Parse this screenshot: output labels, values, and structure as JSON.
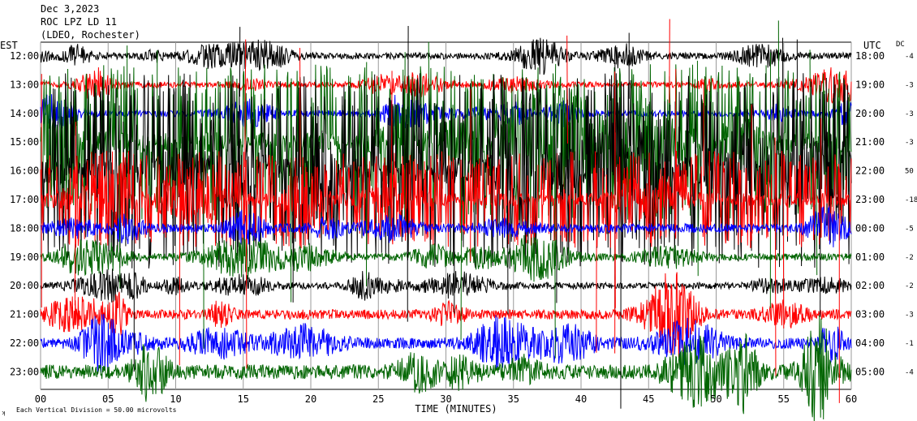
{
  "header": {
    "date": "Dec 3,2023",
    "station": "ROC LPZ LD 11",
    "location": "(LDEO, Rochester)"
  },
  "left_axis_title": "EST",
  "right_axis_title": "UTC",
  "dc_title": "DC",
  "footer": {
    "scale_note": "Each Vertical Division =   50.00 microvolts",
    "corner_mark": "ʞ"
  },
  "chart_data": {
    "type": "line",
    "title": "",
    "xlabel": "TIME (MINUTES)",
    "xlim": [
      0,
      60
    ],
    "x_ticks": [
      "00",
      "05",
      "10",
      "15",
      "20",
      "25",
      "30",
      "35",
      "40",
      "45",
      "50",
      "55",
      "60"
    ],
    "grid": "vertical lines every 5 minutes",
    "series": [
      {
        "est": "12:00",
        "utc": "18:00",
        "dc": "-4",
        "color": "#000000",
        "amplitude": 0.5,
        "saturated": false
      },
      {
        "est": "13:00",
        "utc": "19:00",
        "dc": "-3",
        "color": "#ff0000",
        "amplitude": 0.45,
        "saturated": false
      },
      {
        "est": "14:00",
        "utc": "20:00",
        "dc": "-3",
        "color": "#0000ff",
        "amplitude": 0.5,
        "saturated": false
      },
      {
        "est": "15:00",
        "utc": "21:00",
        "dc": "-3",
        "color": "#006400",
        "amplitude": 1.6,
        "saturated": true
      },
      {
        "est": "16:00",
        "utc": "22:00",
        "dc": "50",
        "color": "#000000",
        "amplitude": 2.0,
        "saturated": true
      },
      {
        "est": "17:00",
        "utc": "23:00",
        "dc": "-18",
        "color": "#ff0000",
        "amplitude": 1.0,
        "saturated": true
      },
      {
        "est": "18:00",
        "utc": "00:00",
        "dc": "-5",
        "color": "#0000ff",
        "amplitude": 0.7,
        "saturated": false
      },
      {
        "est": "19:00",
        "utc": "01:00",
        "dc": "-2",
        "color": "#006400",
        "amplitude": 0.55,
        "saturated": false
      },
      {
        "est": "20:00",
        "utc": "02:00",
        "dc": "-2",
        "color": "#000000",
        "amplitude": 0.5,
        "saturated": false
      },
      {
        "est": "21:00",
        "utc": "03:00",
        "dc": "-3",
        "color": "#ff0000",
        "amplitude": 0.75,
        "saturated": false
      },
      {
        "est": "22:00",
        "utc": "04:00",
        "dc": "-1",
        "color": "#0000ff",
        "amplitude": 0.85,
        "saturated": false
      },
      {
        "est": "23:00",
        "utc": "05:00",
        "dc": "-4",
        "color": "#006400",
        "amplitude": 1.1,
        "saturated": false
      }
    ]
  }
}
